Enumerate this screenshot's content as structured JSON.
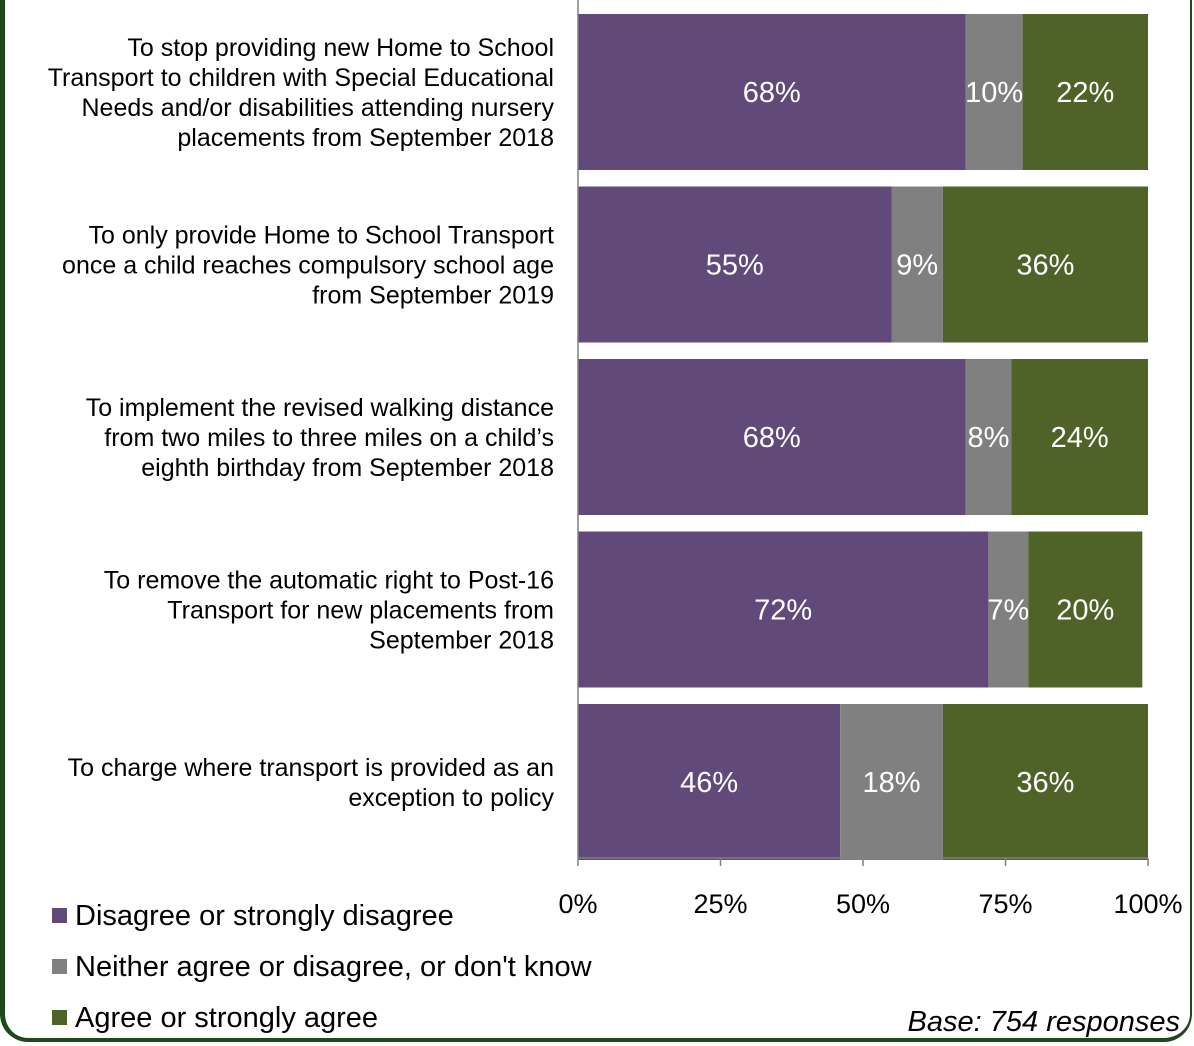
{
  "chart_data": {
    "type": "bar",
    "orientation": "horizontal",
    "stacked": true,
    "percent_scale": true,
    "categories": [
      [
        "To stop providing new Home to School",
        "Transport to children with Special Educational",
        "Needs and/or disabilities attending nursery",
        "placements from September 2018"
      ],
      [
        "To only provide Home to School Transport",
        "once a child reaches compulsory school age",
        "from September 2019"
      ],
      [
        "To implement the revised walking distance",
        "from two miles to three miles on a child’s",
        "eighth birthday from September 2018"
      ],
      [
        "To remove the automatic right to Post-16",
        "Transport for new placements from",
        "September 2018"
      ],
      [
        "To charge where transport is provided as an",
        "exception to policy"
      ]
    ],
    "series": [
      {
        "name": "Disagree or strongly disagree",
        "color": "#614a7a",
        "values": [
          68,
          55,
          68,
          72,
          46
        ],
        "labels": [
          "68%",
          "55%",
          "68%",
          "72%",
          "46%"
        ]
      },
      {
        "name": "Neither agree or disagree, or don't know",
        "color": "#808080",
        "values": [
          10,
          9,
          8,
          7,
          18
        ],
        "labels": [
          "10%",
          "9%",
          "8%",
          "7%",
          "18%"
        ]
      },
      {
        "name": "Agree or strongly agree",
        "color": "#4f6228",
        "values": [
          22,
          36,
          24,
          20,
          36
        ],
        "labels": [
          "22%",
          "36%",
          "24%",
          "20%",
          "36%"
        ]
      }
    ],
    "xlim": [
      0,
      100
    ],
    "xticks": [
      "0%",
      "25%",
      "50%",
      "75%",
      "100%"
    ],
    "grid": false,
    "legend_position": "bottom-left",
    "title": "",
    "xlabel": "",
    "ylabel": ""
  },
  "footer": {
    "base_note": "Base: 754 responses"
  }
}
